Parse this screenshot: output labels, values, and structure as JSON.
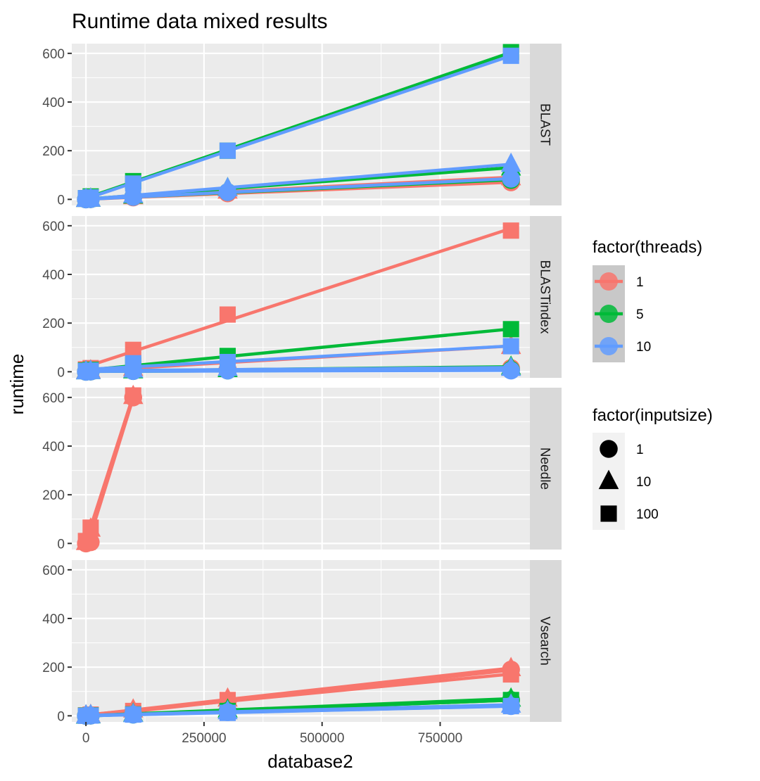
{
  "chart_data": {
    "type": "line",
    "title": "Runtime data mixed results",
    "xlabel": "database2",
    "ylabel": "runtime",
    "xlim": [
      -30000,
      940000
    ],
    "ylim": [
      -25,
      640
    ],
    "x_ticks": [
      0,
      250000,
      500000,
      750000
    ],
    "x_tick_labels": [
      "0",
      "250000",
      "500000",
      "750000"
    ],
    "y_ticks": [
      0,
      200,
      400,
      600
    ],
    "y_tick_labels": [
      "0",
      "200",
      "400",
      "600"
    ],
    "grid": true,
    "facets": [
      "BLAST",
      "BLASTindex",
      "Needle",
      "Vsearch"
    ],
    "legend_position": "right",
    "color_legend": {
      "title": "factor(threads)",
      "entries": [
        {
          "label": "1",
          "color": "#F8766D"
        },
        {
          "label": "5",
          "color": "#00BA38"
        },
        {
          "label": "10",
          "color": "#619CFF"
        }
      ]
    },
    "shape_legend": {
      "title": "factor(inputsize)",
      "entries": [
        {
          "label": "1",
          "shape": "circle"
        },
        {
          "label": "10",
          "shape": "triangle"
        },
        {
          "label": "100",
          "shape": "square"
        }
      ]
    },
    "panels": [
      {
        "facet": "BLAST",
        "series": [
          {
            "threads": "1",
            "inputsize": "1",
            "x": [
              0,
              10000,
              100000,
              300000,
              900000
            ],
            "y": [
              0,
              1,
              8,
              25,
              70
            ]
          },
          {
            "threads": "1",
            "inputsize": "10",
            "x": [
              0,
              10000,
              100000,
              300000,
              900000
            ],
            "y": [
              1,
              2,
              12,
              35,
              90
            ]
          },
          {
            "threads": "5",
            "inputsize": "1",
            "x": [
              0,
              10000,
              100000,
              300000,
              900000
            ],
            "y": [
              0,
              1,
              10,
              30,
              80
            ]
          },
          {
            "threads": "5",
            "inputsize": "10",
            "x": [
              0,
              10000,
              100000,
              300000,
              900000
            ],
            "y": [
              1,
              2,
              15,
              45,
              130
            ]
          },
          {
            "threads": "5",
            "inputsize": "100",
            "x": [
              0,
              10000,
              100000,
              300000,
              900000
            ],
            "y": [
              5,
              12,
              75,
              200,
              605
            ]
          },
          {
            "threads": "10",
            "inputsize": "1",
            "x": [
              0,
              10000,
              100000,
              300000,
              900000
            ],
            "y": [
              0,
              1,
              10,
              30,
              85
            ]
          },
          {
            "threads": "10",
            "inputsize": "10",
            "x": [
              0,
              10000,
              100000,
              300000,
              900000
            ],
            "y": [
              1,
              2,
              18,
              45,
              145
            ]
          },
          {
            "threads": "10",
            "inputsize": "100",
            "x": [
              0,
              10000,
              100000,
              300000,
              900000
            ],
            "y": [
              5,
              8,
              65,
              200,
              590
            ]
          }
        ]
      },
      {
        "facet": "BLASTindex",
        "series": [
          {
            "threads": "1",
            "inputsize": "1",
            "x": [
              0,
              10000,
              100000,
              300000,
              900000
            ],
            "y": [
              0,
              1,
              5,
              10,
              15
            ]
          },
          {
            "threads": "1",
            "inputsize": "10",
            "x": [
              0,
              10000,
              100000,
              300000,
              900000
            ],
            "y": [
              2,
              5,
              15,
              40,
              105
            ]
          },
          {
            "threads": "1",
            "inputsize": "100",
            "x": [
              0,
              10000,
              100000,
              300000,
              900000
            ],
            "y": [
              10,
              15,
              90,
              235,
              580
            ]
          },
          {
            "threads": "5",
            "inputsize": "1",
            "x": [
              0,
              10000,
              100000,
              300000,
              900000
            ],
            "y": [
              0,
              1,
              3,
              5,
              8
            ]
          },
          {
            "threads": "5",
            "inputsize": "10",
            "x": [
              0,
              10000,
              100000,
              300000,
              900000
            ],
            "y": [
              1,
              2,
              5,
              10,
              20
            ]
          },
          {
            "threads": "5",
            "inputsize": "100",
            "x": [
              0,
              10000,
              100000,
              300000,
              900000
            ],
            "y": [
              5,
              8,
              25,
              65,
              175
            ]
          },
          {
            "threads": "10",
            "inputsize": "1",
            "x": [
              0,
              10000,
              100000,
              300000,
              900000
            ],
            "y": [
              0,
              1,
              3,
              5,
              5
            ]
          },
          {
            "threads": "10",
            "inputsize": "10",
            "x": [
              0,
              10000,
              100000,
              300000,
              900000
            ],
            "y": [
              1,
              2,
              8,
              15,
              15
            ]
          },
          {
            "threads": "10",
            "inputsize": "100",
            "x": [
              0,
              10000,
              100000,
              300000,
              900000
            ],
            "y": [
              3,
              5,
              35,
              40,
              105
            ]
          }
        ]
      },
      {
        "facet": "Needle",
        "series": [
          {
            "threads": "1",
            "inputsize": "1",
            "x": [
              0,
              10000,
              100000
            ],
            "y": [
              0,
              5,
              600
            ]
          },
          {
            "threads": "1",
            "inputsize": "10",
            "x": [
              0,
              10000,
              100000
            ],
            "y": [
              5,
              60,
              605
            ]
          },
          {
            "threads": "1",
            "inputsize": "100",
            "x": [
              0,
              10000,
              100000
            ],
            "y": [
              10,
              65,
              608
            ]
          }
        ]
      },
      {
        "facet": "Vsearch",
        "series": [
          {
            "threads": "1",
            "inputsize": "1",
            "x": [
              0,
              10000,
              100000,
              300000,
              900000
            ],
            "y": [
              0,
              1,
              15,
              55,
              190
            ]
          },
          {
            "threads": "1",
            "inputsize": "10",
            "x": [
              0,
              10000,
              100000,
              300000,
              900000
            ],
            "y": [
              1,
              3,
              25,
              70,
              195
            ]
          },
          {
            "threads": "1",
            "inputsize": "100",
            "x": [
              0,
              10000,
              100000,
              300000,
              900000
            ],
            "y": [
              2,
              5,
              20,
              65,
              170
            ]
          },
          {
            "threads": "5",
            "inputsize": "1",
            "x": [
              0,
              10000,
              100000,
              300000,
              900000
            ],
            "y": [
              0,
              1,
              5,
              20,
              65
            ]
          },
          {
            "threads": "5",
            "inputsize": "10",
            "x": [
              0,
              10000,
              100000,
              300000,
              900000
            ],
            "y": [
              0,
              1,
              8,
              25,
              70
            ]
          },
          {
            "threads": "5",
            "inputsize": "100",
            "x": [
              0,
              10000,
              100000,
              300000,
              900000
            ],
            "y": [
              1,
              2,
              6,
              20,
              65
            ]
          },
          {
            "threads": "10",
            "inputsize": "1",
            "x": [
              0,
              10000,
              100000,
              300000,
              900000
            ],
            "y": [
              0,
              1,
              5,
              15,
              40
            ]
          },
          {
            "threads": "10",
            "inputsize": "10",
            "x": [
              0,
              10000,
              100000,
              300000,
              900000
            ],
            "y": [
              1,
              2,
              6,
              18,
              45
            ]
          },
          {
            "threads": "10",
            "inputsize": "100",
            "x": [
              0,
              10000,
              100000,
              300000,
              900000
            ],
            "y": [
              0,
              1,
              5,
              12,
              40
            ]
          }
        ]
      }
    ]
  }
}
